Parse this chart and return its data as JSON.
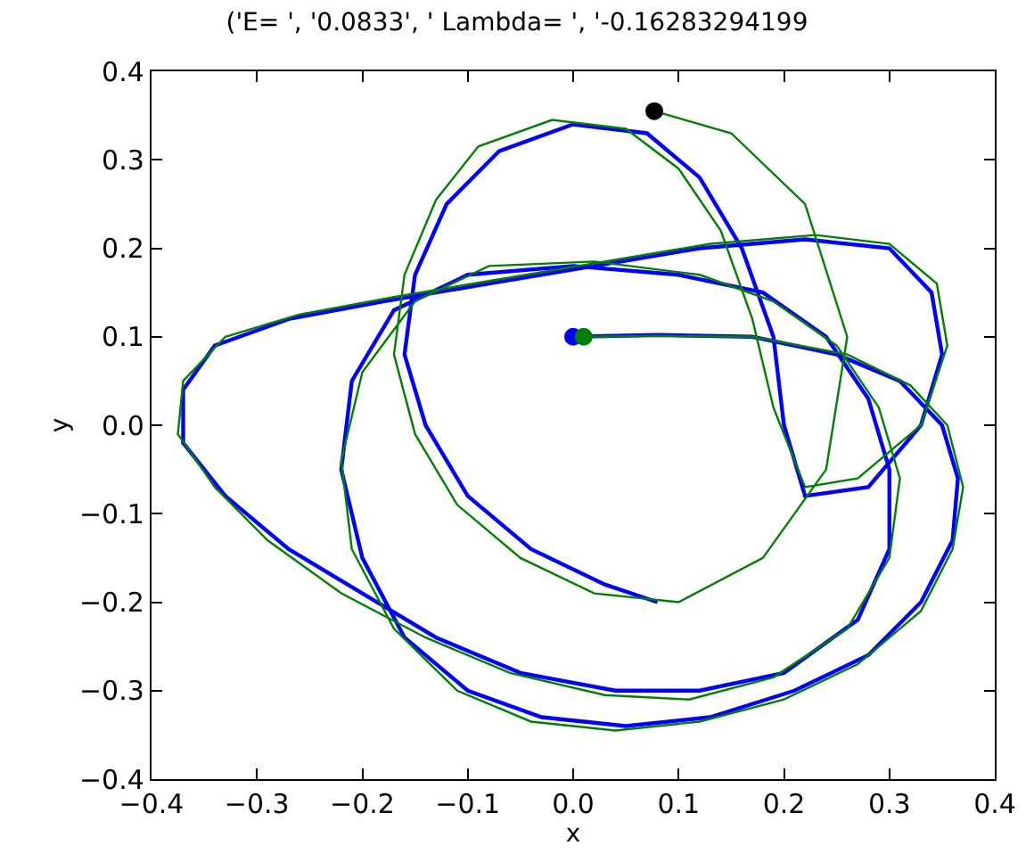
{
  "chart_data": {
    "type": "line",
    "title": "('E= ', '0.0833', ' Lambda= ', '-0.16283294199",
    "xlabel": "x",
    "ylabel": "y",
    "xlim": [
      -0.4,
      0.4
    ],
    "ylim": [
      -0.4,
      0.4
    ],
    "xticks": [
      {
        "value": -0.4,
        "label": "−0.4"
      },
      {
        "value": -0.3,
        "label": "−0.3"
      },
      {
        "value": -0.2,
        "label": "−0.2"
      },
      {
        "value": -0.1,
        "label": "−0.1"
      },
      {
        "value": 0.0,
        "label": "0.0"
      },
      0.1,
      0.2,
      0.3,
      0.4
    ],
    "yticks": [
      {
        "value": -0.4,
        "label": "−0.4"
      },
      {
        "value": -0.3,
        "label": "−0.3"
      },
      {
        "value": -0.2,
        "label": "−0.2"
      },
      {
        "value": -0.1,
        "label": "−0.1"
      },
      {
        "value": 0.0,
        "label": "0.0"
      },
      0.1,
      0.2,
      0.3,
      0.4
    ],
    "grid": false,
    "marker": "none",
    "line_style": "solid",
    "series": [
      {
        "color": "#0000ff",
        "x": [
          0.0,
          0.08,
          0.17,
          0.25,
          0.31,
          0.35,
          0.365,
          0.36,
          0.33,
          0.28,
          0.21,
          0.13,
          0.05,
          -0.03,
          -0.1,
          -0.16,
          -0.2,
          -0.22,
          -0.21,
          -0.17,
          -0.1,
          0.0,
          0.1,
          0.18,
          0.24,
          0.28,
          0.3,
          0.3,
          0.27,
          0.2,
          0.12,
          0.04,
          -0.05,
          -0.13,
          -0.2,
          -0.27,
          -0.33,
          -0.37,
          -0.37,
          -0.34,
          -0.27,
          -0.18,
          -0.08,
          0.02,
          0.12,
          0.22,
          0.3,
          0.34,
          0.35,
          0.33,
          0.28,
          0.22,
          0.2,
          0.19,
          0.16,
          0.12,
          0.07,
          0.0,
          -0.07,
          -0.12,
          -0.15,
          -0.16,
          -0.14,
          -0.1,
          -0.04,
          0.03,
          0.08
        ],
        "values": [
          0.1,
          0.102,
          0.1,
          0.08,
          0.05,
          0.0,
          -0.06,
          -0.13,
          -0.2,
          -0.26,
          -0.3,
          -0.33,
          -0.34,
          -0.33,
          -0.3,
          -0.24,
          -0.15,
          -0.05,
          0.05,
          0.13,
          0.17,
          0.18,
          0.17,
          0.15,
          0.1,
          0.03,
          -0.05,
          -0.14,
          -0.22,
          -0.28,
          -0.3,
          -0.3,
          -0.28,
          -0.24,
          -0.19,
          -0.14,
          -0.08,
          -0.02,
          0.04,
          0.09,
          0.12,
          0.14,
          0.16,
          0.18,
          0.2,
          0.21,
          0.2,
          0.15,
          0.08,
          0.0,
          -0.07,
          -0.08,
          0.0,
          0.1,
          0.2,
          0.28,
          0.33,
          0.34,
          0.31,
          0.25,
          0.17,
          0.08,
          0.0,
          -0.08,
          -0.14,
          -0.18,
          -0.2
        ]
      },
      {
        "color": "#008000",
        "x": [
          0.01,
          0.08,
          0.17,
          0.26,
          0.32,
          0.355,
          0.37,
          0.36,
          0.33,
          0.27,
          0.2,
          0.12,
          0.04,
          -0.04,
          -0.11,
          -0.17,
          -0.21,
          -0.22,
          -0.2,
          -0.15,
          -0.08,
          0.02,
          0.12,
          0.19,
          0.25,
          0.29,
          0.31,
          0.3,
          0.26,
          0.19,
          0.11,
          0.03,
          -0.06,
          -0.14,
          -0.22,
          -0.29,
          -0.34,
          -0.375,
          -0.37,
          -0.33,
          -0.26,
          -0.17,
          -0.07,
          0.03,
          0.13,
          0.23,
          0.3,
          0.345,
          0.355,
          0.33,
          0.27,
          0.22,
          0.19,
          0.17,
          0.14,
          0.1,
          0.05,
          -0.02,
          -0.09,
          -0.13,
          -0.16,
          -0.17,
          -0.15,
          -0.11,
          -0.05,
          0.02,
          0.1,
          0.18,
          0.24,
          0.26,
          0.22,
          0.15,
          0.077
        ],
        "values": [
          0.1,
          0.101,
          0.1,
          0.08,
          0.045,
          0.0,
          -0.07,
          -0.14,
          -0.21,
          -0.27,
          -0.31,
          -0.335,
          -0.345,
          -0.335,
          -0.3,
          -0.23,
          -0.14,
          -0.04,
          0.06,
          0.14,
          0.18,
          0.185,
          0.17,
          0.14,
          0.09,
          0.02,
          -0.06,
          -0.15,
          -0.23,
          -0.285,
          -0.31,
          -0.305,
          -0.28,
          -0.24,
          -0.19,
          -0.13,
          -0.07,
          -0.01,
          0.05,
          0.1,
          0.125,
          0.145,
          0.165,
          0.185,
          0.205,
          0.215,
          0.205,
          0.16,
          0.09,
          0.0,
          -0.06,
          -0.07,
          0.02,
          0.12,
          0.22,
          0.29,
          0.335,
          0.345,
          0.315,
          0.255,
          0.17,
          0.08,
          -0.01,
          -0.09,
          -0.15,
          -0.19,
          -0.2,
          -0.15,
          -0.05,
          0.1,
          0.25,
          0.33,
          0.355
        ]
      },
      {
        "type": "scatter",
        "marker": "circle",
        "color": "#0000ff",
        "x": [
          0.0
        ],
        "values": [
          0.1
        ]
      },
      {
        "type": "scatter",
        "marker": "circle",
        "color": "#008000",
        "x": [
          0.01
        ],
        "values": [
          0.1
        ]
      },
      {
        "type": "scatter",
        "marker": "circle",
        "color": "#000000",
        "x": [
          0.077
        ],
        "values": [
          0.355
        ]
      }
    ]
  }
}
